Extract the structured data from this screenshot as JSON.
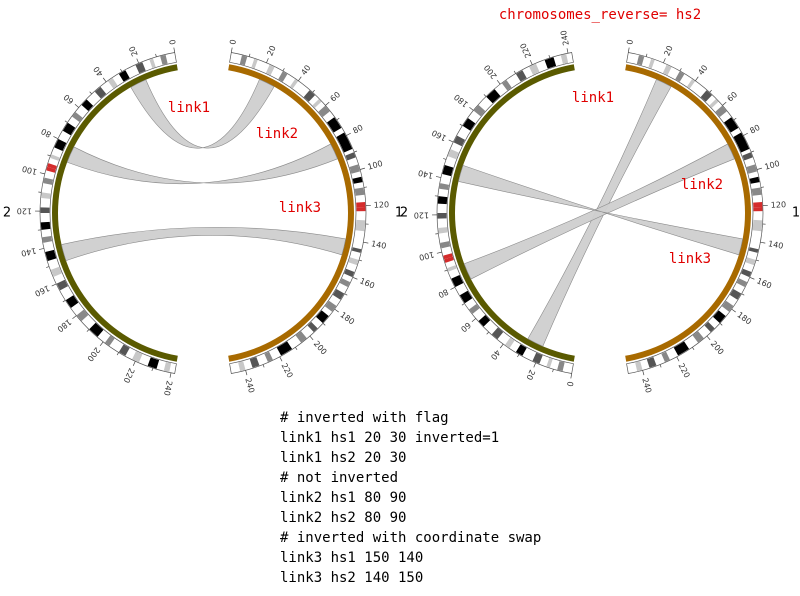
{
  "right_title": "chromosomes_reverse= hs2",
  "colors": {
    "hs1_ribbon": "#a86a00",
    "hs2_ribbon": "#5a5a00",
    "link_fill": "#cfcfcf",
    "link_stroke": "#8a8a8a",
    "label_red": "#e00000",
    "cyto_gpos100": "#000000",
    "cyto_gpos75": "#555555",
    "cyto_gpos50": "#888888",
    "cyto_gpos25": "#c8c8c8",
    "cyto_acen": "#d42c2c"
  },
  "chromosomes": {
    "hs1": {
      "name": "1",
      "length": 248
    },
    "hs2": {
      "name": "2",
      "length": 242
    }
  },
  "tick_values": {
    "hs1": [
      "0",
      "20",
      "40",
      "60",
      "80",
      "100",
      "120",
      "140",
      "160",
      "180",
      "200",
      "220",
      "240"
    ],
    "hs2": [
      "0",
      "20",
      "40",
      "60",
      "80",
      "100",
      "120",
      "140",
      "160",
      "180",
      "200",
      "220",
      "240"
    ]
  },
  "panels": [
    {
      "id": "left",
      "hs2_reversed": false,
      "link_labels": [
        "link1",
        "link2",
        "link3"
      ],
      "links": [
        {
          "name": "link1",
          "hs1": [
            20,
            30
          ],
          "hs2": [
            20,
            30
          ],
          "inverted": true
        },
        {
          "name": "link2",
          "hs1": [
            80,
            90
          ],
          "hs2": [
            80,
            90
          ],
          "inverted": false
        },
        {
          "name": "link3",
          "hs1": [
            150,
            140
          ],
          "hs2": [
            140,
            150
          ],
          "inverted": true
        }
      ]
    },
    {
      "id": "right",
      "hs2_reversed": true,
      "link_labels": [
        "link1",
        "link2",
        "link3"
      ],
      "links": [
        {
          "name": "link1",
          "hs1": [
            20,
            30
          ],
          "hs2": [
            20,
            30
          ],
          "inverted": true
        },
        {
          "name": "link2",
          "hs1": [
            80,
            90
          ],
          "hs2": [
            80,
            90
          ],
          "inverted": false
        },
        {
          "name": "link3",
          "hs1": [
            150,
            140
          ],
          "hs2": [
            140,
            150
          ],
          "inverted": true
        }
      ]
    }
  ],
  "config_lines": [
    "# inverted with flag",
    "link1 hs1 20 30 inverted=1",
    "link1 hs2 20 30",
    "# not inverted",
    "link2 hs1 80 90",
    "link2 hs2 80 90",
    "# inverted with coordinate swap",
    "link3 hs1 150 140",
    "link3 hs2 140 150"
  ]
}
